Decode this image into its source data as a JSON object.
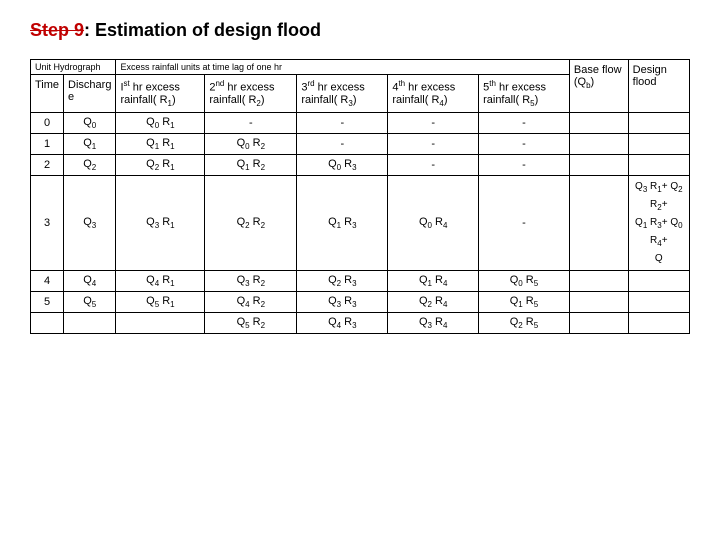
{
  "title_strike": "Step 9",
  "title_rest": ": Estimation of design flood",
  "header_uh": "Unit Hydrograph",
  "header_excess": "Excess rainfall units at time lag of one hr",
  "header_base": "Base flow (Q_b)",
  "header_design": "Design flood",
  "col_time": "Time",
  "col_discharge": "Discharg e",
  "col_1st": "Ist hr excess rainfall( R1)",
  "col_2nd": "2nd hr excess rainfall( R2)",
  "col_3rd": "3rd hr excess rainfall( R3)",
  "col_4th": "4th hr excess rainfall( R4)",
  "col_5th": "5th hr excess rainfall( R5)",
  "rows": [
    {
      "t": "0",
      "q": "Q0",
      "c1": "Q0 R1",
      "c2": "-",
      "c3": "-",
      "c4": "-",
      "c5": "-",
      "df": ""
    },
    {
      "t": "1",
      "q": "Q1",
      "c1": "Q1 R1",
      "c2": "Q0 R2",
      "c3": "-",
      "c4": "-",
      "c5": "-",
      "df": ""
    },
    {
      "t": "2",
      "q": "Q2",
      "c1": "Q2 R1",
      "c2": "Q1 R2",
      "c3": "Q0 R3",
      "c4": "-",
      "c5": "-",
      "df": ""
    },
    {
      "t": "3",
      "q": "Q3",
      "c1": "Q3 R1",
      "c2": "Q2 R2",
      "c3": "Q1 R3",
      "c4": "Q0 R4",
      "c5": "-",
      "df": "Q3 R1 + Q2 R2 + Q1 R3 + Q0 R4 + Q"
    },
    {
      "t": "4",
      "q": "Q4",
      "c1": "Q4 R1",
      "c2": "Q3 R2",
      "c3": "Q2 R3",
      "c4": "Q1 R4",
      "c5": "Q0 R5",
      "df": ""
    },
    {
      "t": "5",
      "q": "Q5",
      "c1": "Q5 R1",
      "c2": "Q4 R2",
      "c3": "Q3 R3",
      "c4": "Q2 R4",
      "c5": "Q1 R5",
      "df": ""
    },
    {
      "t": "",
      "q": "",
      "c1": "",
      "c2": "Q5 R2",
      "c3": "Q4 R3",
      "c4": "Q3 R4",
      "c5": "Q2 R5",
      "df": ""
    }
  ]
}
